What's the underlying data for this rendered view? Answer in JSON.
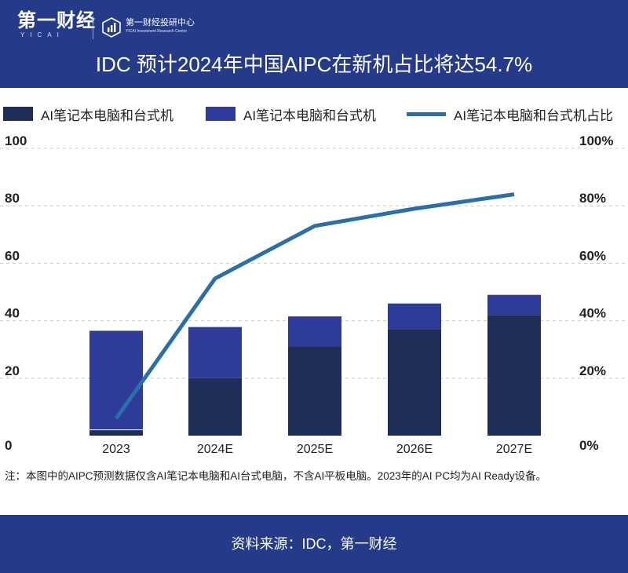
{
  "header": {
    "brand_main": "第一财经",
    "brand_sub": "YICAI",
    "center_name": "第一财经投研中心",
    "center_en": "YICAI Investment Research Centre",
    "title": "IDC 预计2024年中国AIPC在新机占比将达54.7%"
  },
  "colors": {
    "dark_bar": "#1f2d59",
    "light_bar": "#2e3b99",
    "line": "#2a6fa8",
    "header_bg": "#263a8a"
  },
  "chart_data": {
    "type": "bar",
    "stacked": true,
    "categories": [
      "2023",
      "2024E",
      "2025E",
      "2026E",
      "2027E"
    ],
    "series": [
      {
        "name": "AI笔记本电脑和台式机",
        "type": "bar",
        "axis": "left",
        "values": [
          2,
          20,
          31,
          37,
          42
        ]
      },
      {
        "name": "AI笔记本电脑和台式机",
        "type": "bar",
        "axis": "left",
        "values": [
          34.5,
          17.8,
          10.5,
          9,
          7
        ]
      },
      {
        "name": "AI笔记本电脑和台式机占比",
        "type": "line",
        "axis": "right",
        "values": [
          6,
          54.7,
          73,
          79,
          84
        ]
      }
    ],
    "y_left": {
      "ticks": [
        "0",
        "20",
        "40",
        "60",
        "80",
        "100"
      ],
      "range": [
        0,
        100
      ]
    },
    "y_right": {
      "ticks": [
        "0%",
        "20%",
        "40%",
        "60%",
        "80%",
        "100%"
      ],
      "range": [
        0,
        100
      ]
    },
    "grid": true,
    "legend_position": "top"
  },
  "note": "注：本图中的AIPC预测数据仅含AI笔记本电脑和AI台式电脑，不含AI平板电脑。2023年的AI PC均为AI Ready设备。",
  "footer": {
    "source": "资料来源：IDC，第一财经"
  }
}
